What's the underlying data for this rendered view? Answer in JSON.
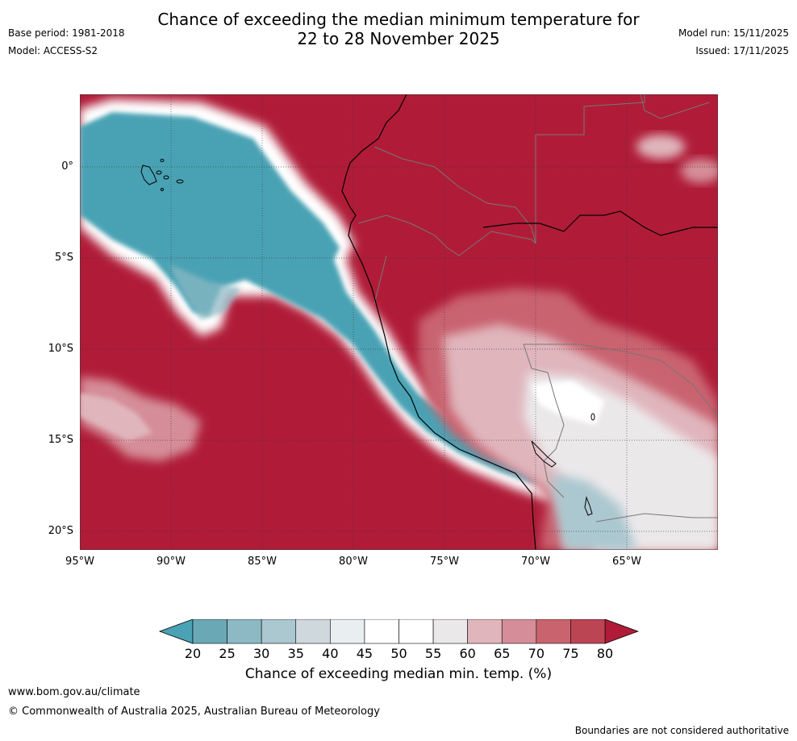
{
  "header": {
    "title_line1": "Chance of exceeding the median minimum temperature for",
    "title_line2": "22 to 28 November 2025",
    "base_period": "Base period: 1981-2018",
    "model": "Model: ACCESS-S2",
    "model_run": "Model run: 15/11/2025",
    "issued": "Issued: 17/11/2025"
  },
  "map": {
    "lat_labels": [
      "0°",
      "5°S",
      "10°S",
      "15°S",
      "20°S"
    ],
    "lon_labels": [
      "95°W",
      "90°W",
      "85°W",
      "80°W",
      "75°W",
      "70°W",
      "65°W"
    ]
  },
  "legend": {
    "tick_labels": [
      "20",
      "25",
      "30",
      "35",
      "40",
      "45",
      "50",
      "55",
      "60",
      "65",
      "70",
      "75",
      "80"
    ],
    "title": "Chance of exceeding median min. temp. (%)",
    "bin_colors": [
      "#6aa8b6",
      "#8db9c5",
      "#abc7cf",
      "#cfd9dd",
      "#e9eef1",
      "#ffffff",
      "#ffffff",
      "#ebe8ea",
      "#e0b5bc",
      "#d58e99",
      "#c9646f",
      "#bc4553"
    ],
    "low_extend_color": "#4aa2b4",
    "high_extend_color": "#b01c38"
  },
  "footer": {
    "url": "www.bom.gov.au/climate",
    "copyright": "© Commonwealth of Australia 2025, Australian Bureau of Meteorology",
    "disclaimer": "Boundaries are not considered authoritative"
  }
}
